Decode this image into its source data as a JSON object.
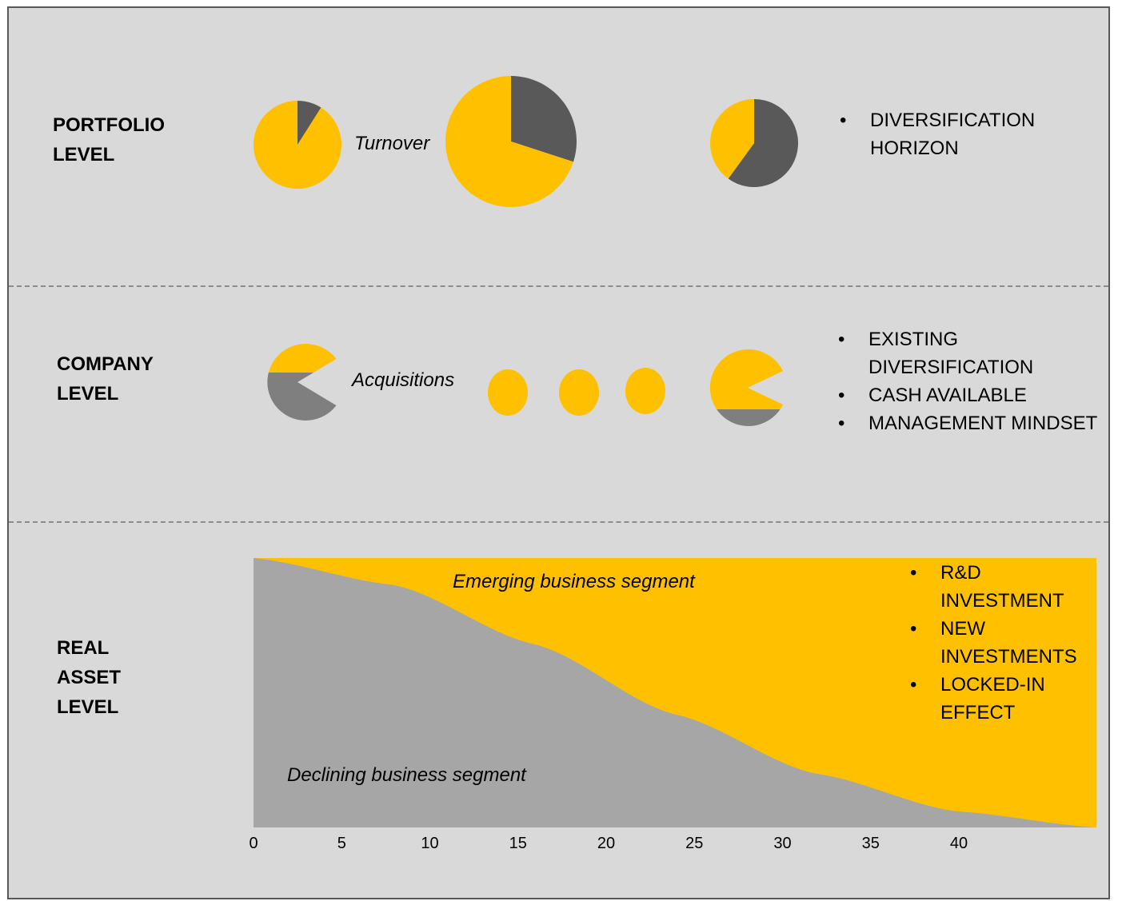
{
  "colors": {
    "yellow": "#ffc000",
    "dark_gray": "#595959",
    "mid_gray": "#7f7f7f",
    "light_gray": "#a6a6a6",
    "background": "#d9d9d9"
  },
  "portfolio": {
    "label": "PORTFOLIO\nLEVEL",
    "caption": "Turnover",
    "pies": [
      {
        "yellow_share": 0.91,
        "dark_share": 0.09
      },
      {
        "yellow_share": 0.7,
        "dark_share": 0.3
      },
      {
        "yellow_share": 0.4,
        "dark_share": 0.6
      }
    ],
    "bullets": [
      "DIVERSIFICATION\nHORIZON"
    ]
  },
  "company": {
    "label": "COMPANY\nLEVEL",
    "caption": "Acquisitions",
    "bullets": [
      "EXISTING\nDIVERSIFICATION",
      "CASH AVAILABLE",
      "MANAGEMENT MINDSET"
    ]
  },
  "real_asset": {
    "label": "REAL\nASSET\nLEVEL",
    "emerging_label": "Emerging business segment",
    "declining_label": "Declining business segment",
    "bullets": [
      "R&D\nINVESTMENT",
      "NEW\nINVESTMENTS",
      "LOCKED-IN\nEFFECT"
    ]
  },
  "chart_data": {
    "type": "area",
    "x_ticks": [
      0,
      5,
      10,
      15,
      20,
      25,
      30,
      35,
      40
    ],
    "xlim": [
      0,
      48
    ],
    "series": [
      {
        "name": "Declining business segment",
        "x": [
          0,
          8,
          16,
          24,
          32,
          40,
          48
        ],
        "share": [
          1.0,
          0.9,
          0.68,
          0.42,
          0.2,
          0.06,
          0.0
        ]
      },
      {
        "name": "Emerging business segment",
        "x": [
          0,
          8,
          16,
          24,
          32,
          40,
          48
        ],
        "share": [
          0.0,
          0.1,
          0.32,
          0.58,
          0.8,
          0.94,
          1.0
        ]
      }
    ]
  }
}
